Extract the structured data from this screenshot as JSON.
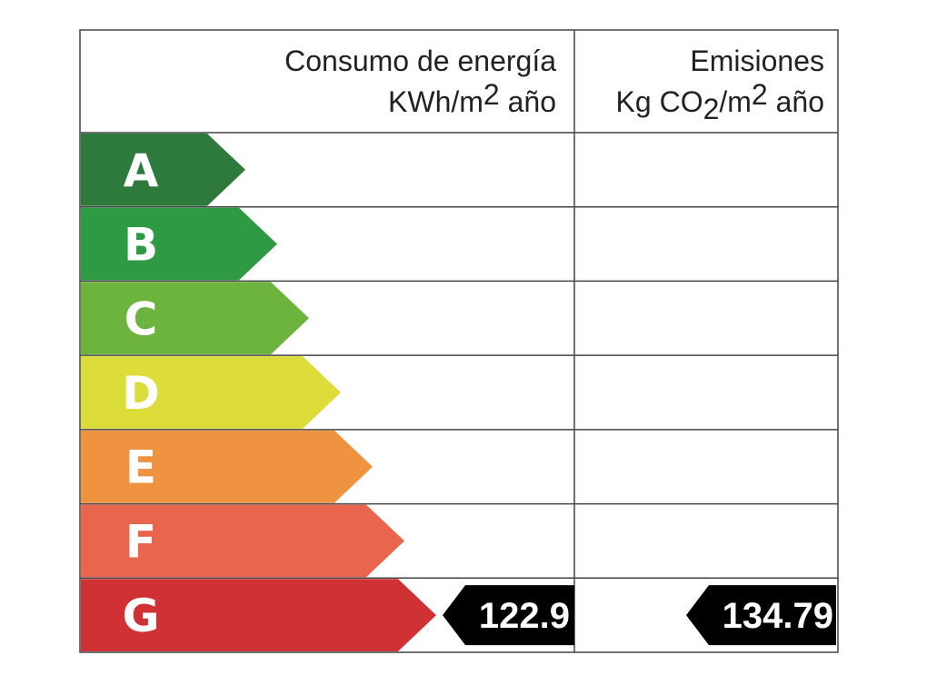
{
  "header": {
    "consumption": {
      "title": "Consumo de energía",
      "unit": [
        {
          "text": "KWh/m"
        },
        {
          "text": "2",
          "pos": "sup"
        },
        {
          "text": " año"
        }
      ]
    },
    "emissions": {
      "title": "Emisiones",
      "unit": [
        {
          "text": "Kg CO"
        },
        {
          "text": "2",
          "pos": "sub"
        },
        {
          "text": "/m"
        },
        {
          "text": "2",
          "pos": "sup"
        },
        {
          "text": " año"
        }
      ]
    }
  },
  "rows": [
    {
      "letter": "A",
      "color": "#2e7a3c"
    },
    {
      "letter": "B",
      "color": "#2e9a44"
    },
    {
      "letter": "C",
      "color": "#6db43f"
    },
    {
      "letter": "D",
      "color": "#dcdc3a"
    },
    {
      "letter": "E",
      "color": "#ef9340"
    },
    {
      "letter": "F",
      "color": "#e9654d"
    },
    {
      "letter": "G",
      "color": "#cf3135",
      "consumption": 122.9,
      "emissions": 134.79
    }
  ]
}
